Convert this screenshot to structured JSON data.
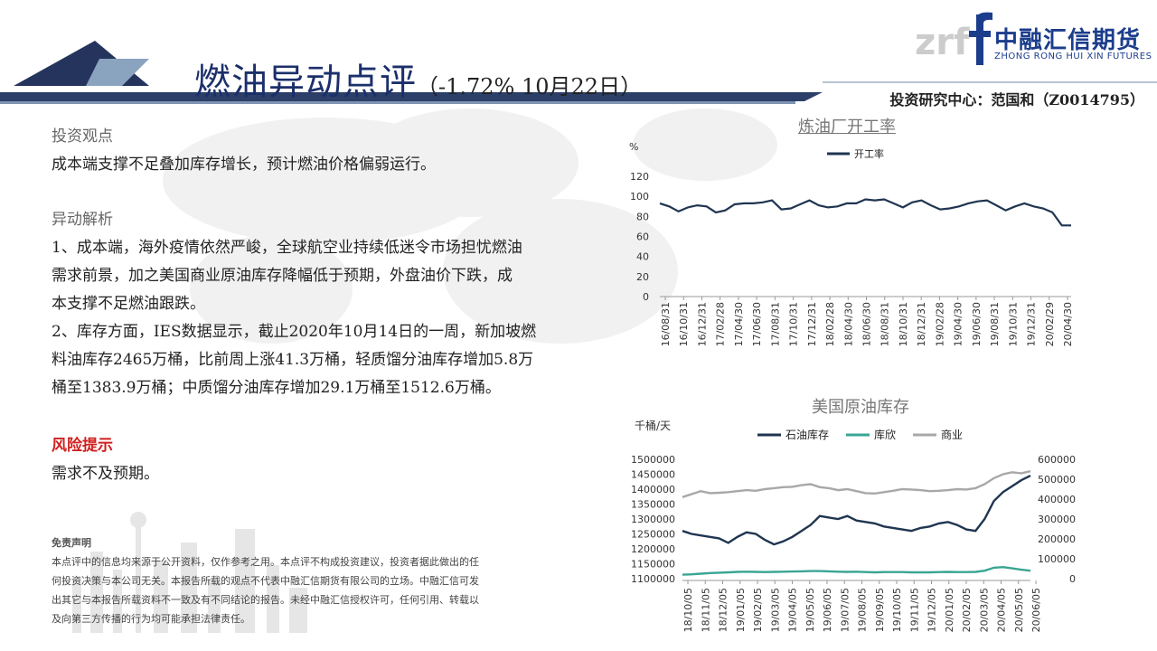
{
  "header": {
    "title_main": "燃油异动点评",
    "title_paren_open": "（",
    "title_pct": "-1.72%",
    "title_date": " 10月22日",
    "title_paren_close": "）",
    "author": "投资研究中心：范国和（Z0014795）",
    "logo_name": "中融汇信期货",
    "logo_en": "ZHONG RONG HUI XIN FUTURES",
    "logo_mark": "zrf"
  },
  "content": {
    "view_title": "投资观点",
    "view_text": "成本端支撑不足叠加库存增长，预计燃油价格偏弱运行。",
    "analysis_title": "异动解析",
    "analysis_lines": [
      "1、成本端，海外疫情依然严峻，全球航空业持续低迷令市场担忧燃油",
      "需求前景，加之美国商业原油库存降幅低于预期，外盘油价下跌，成",
      "本支撑不足燃油跟跌。",
      "2、库存方面，IES数据显示，截止2020年10月14日的一周，新加坡燃",
      "料油库存2465万桶，比前周上涨41.3万桶，轻质馏分油库存增加5.8万",
      "桶至1383.9万桶；中质馏分油库存增加29.1万桶至1512.6万桶。"
    ],
    "risk_title": "风险提示",
    "risk_text": "需求不及预期。"
  },
  "disclaimer": {
    "title": "免责声明",
    "lines": [
      "本点评中的信息均来源于公开资料，仅作参考之用。本点评不构成投资建议，投资者据此做出的任",
      "何投资决策与本公司无关。本报告所载的观点不代表中融汇信期货有限公司的立场。中融汇信可发",
      "出其它与本报告所载资料不一致及有不同结论的报告。未经中融汇信授权许可，任何引用、转载以",
      "及向第三方传播的行为均可能承担法律责任。"
    ]
  },
  "chart_data": [
    {
      "type": "line",
      "title": "炼油厂开工率",
      "ylabel": "%",
      "ylim": [
        0,
        120
      ],
      "yticks": [
        0,
        20,
        40,
        60,
        80,
        100,
        120
      ],
      "xticklabels": [
        "16/08/31",
        "16/10/31",
        "16/12/31",
        "17/02/28",
        "17/04/30",
        "17/06/30",
        "17/08/31",
        "17/10/31",
        "17/12/31",
        "18/02/28",
        "18/04/30",
        "18/06/30",
        "18/08/31",
        "18/10/31",
        "18/12/31",
        "19/02/28",
        "19/04/30",
        "19/06/30",
        "19/08/31",
        "19/10/31",
        "19/12/31",
        "20/02/29",
        "20/04/30"
      ],
      "legend_position": "top",
      "series": [
        {
          "name": "开工率",
          "color": "#1f3550",
          "values": [
            93,
            90,
            85,
            89,
            91,
            90,
            84,
            86,
            92,
            93,
            93,
            94,
            96,
            87,
            88,
            92,
            96,
            91,
            89,
            90,
            93,
            93,
            97,
            96,
            97,
            93,
            89,
            94,
            96,
            91,
            87,
            88,
            90,
            93,
            95,
            96,
            91,
            86,
            90,
            93,
            90,
            88,
            84,
            71,
            71
          ]
        }
      ]
    },
    {
      "type": "line",
      "title": "美国原油库存",
      "ylabel": "千桶/天",
      "ylim_left": [
        1100000,
        1500000
      ],
      "ylim_right": [
        0,
        600000
      ],
      "yticks_left": [
        1100000,
        1150000,
        1200000,
        1250000,
        1300000,
        1350000,
        1400000,
        1450000,
        1500000
      ],
      "yticks_right": [
        0,
        100000,
        200000,
        300000,
        400000,
        500000,
        600000
      ],
      "xticklabels": [
        "18/10/05",
        "18/11/05",
        "18/12/05",
        "19/01/05",
        "19/02/05",
        "19/03/05",
        "19/04/05",
        "19/05/05",
        "19/06/05",
        "19/07/05",
        "19/08/05",
        "19/09/05",
        "19/10/05",
        "19/11/05",
        "19/12/05",
        "20/01/05",
        "20/02/05",
        "20/03/05",
        "20/04/05",
        "20/05/05",
        "20/06/05"
      ],
      "legend_position": "top",
      "series": [
        {
          "name": "石油库存",
          "axis": "left",
          "color": "#1f3550",
          "values": [
            1260000,
            1250000,
            1245000,
            1240000,
            1235000,
            1220000,
            1240000,
            1255000,
            1250000,
            1230000,
            1215000,
            1225000,
            1240000,
            1260000,
            1280000,
            1310000,
            1305000,
            1300000,
            1310000,
            1295000,
            1290000,
            1285000,
            1275000,
            1270000,
            1265000,
            1260000,
            1270000,
            1275000,
            1285000,
            1290000,
            1280000,
            1265000,
            1260000,
            1300000,
            1360000,
            1390000,
            1410000,
            1430000,
            1445000
          ]
        },
        {
          "name": "库欣",
          "axis": "right",
          "color": "#3aa593",
          "values": [
            20000,
            22000,
            25000,
            28000,
            30000,
            32000,
            34000,
            35000,
            34000,
            33000,
            34000,
            35000,
            36000,
            37000,
            38000,
            38000,
            37000,
            35000,
            34000,
            35000,
            33000,
            32000,
            33000,
            33000,
            33000,
            32000,
            32000,
            32000,
            33000,
            34000,
            33000,
            33000,
            34000,
            40000,
            55000,
            58000,
            52000,
            45000,
            40000
          ]
        },
        {
          "name": "商业",
          "axis": "right",
          "color": "#a8a8a8",
          "values": [
            410000,
            425000,
            440000,
            430000,
            432000,
            435000,
            440000,
            445000,
            442000,
            450000,
            455000,
            460000,
            462000,
            470000,
            475000,
            460000,
            455000,
            445000,
            450000,
            440000,
            430000,
            428000,
            435000,
            442000,
            450000,
            448000,
            445000,
            440000,
            442000,
            445000,
            450000,
            448000,
            455000,
            475000,
            505000,
            525000,
            535000,
            530000,
            540000
          ]
        }
      ]
    }
  ]
}
